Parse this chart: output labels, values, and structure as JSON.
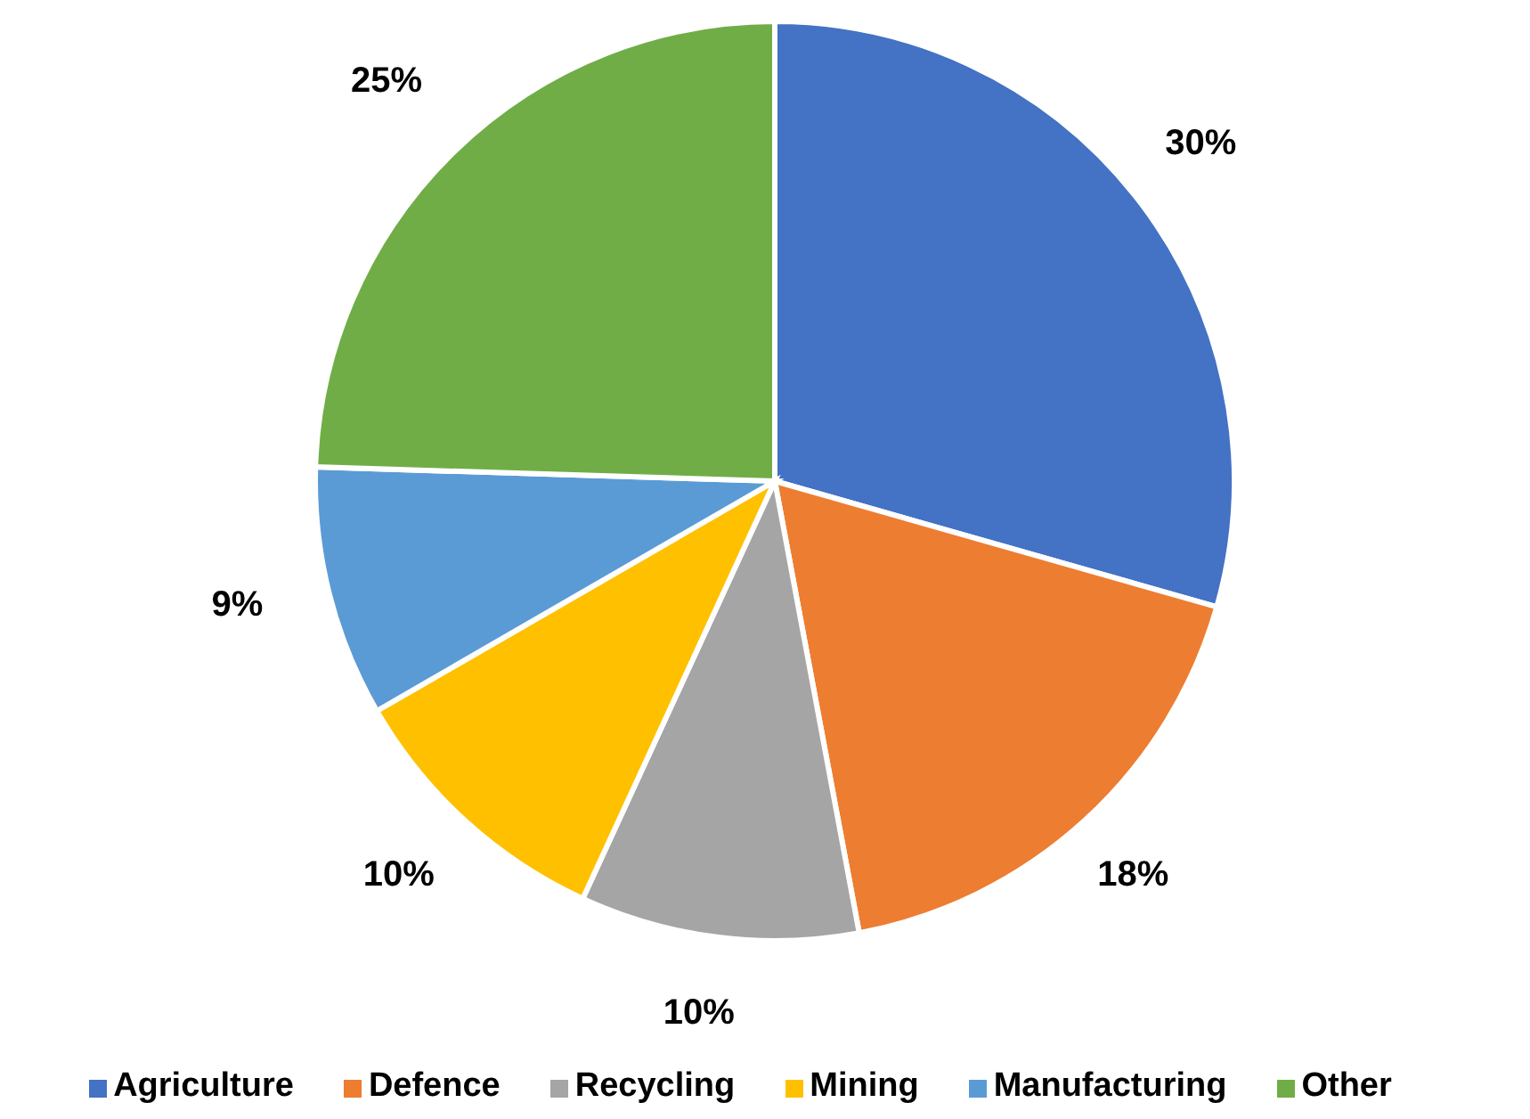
{
  "chart_data": {
    "type": "pie",
    "categories": [
      "Agriculture",
      "Defence",
      "Recycling",
      "Mining",
      "Manufacturing",
      "Other"
    ],
    "values": [
      30,
      18,
      10,
      10,
      9,
      25
    ],
    "value_labels": [
      "30%",
      "18%",
      "10%",
      "10%",
      "9%",
      "25%"
    ],
    "colors": [
      "#4472c4",
      "#ed7d31",
      "#a5a5a5",
      "#ffc000",
      "#5b9bd5",
      "#70ad47"
    ],
    "legend": "bottom"
  }
}
